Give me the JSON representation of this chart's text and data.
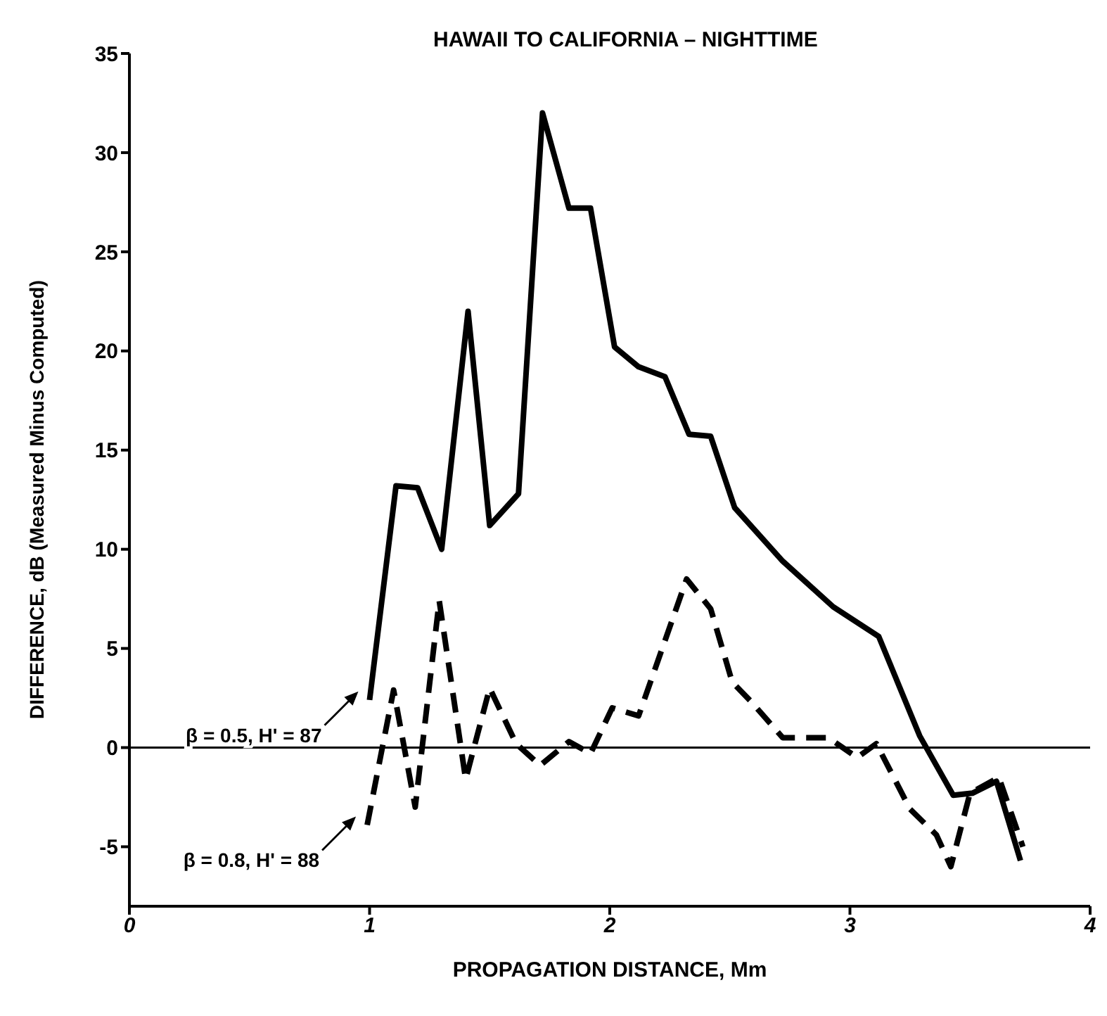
{
  "chart_data": {
    "type": "line",
    "title": "HAWAII TO CALIFORNIA – NIGHTTIME",
    "xlabel": "PROPAGATION DISTANCE, Mm",
    "ylabel": "DIFFERENCE, dB (Measured Minus Computed)",
    "xlim": [
      0,
      4
    ],
    "xticks": [
      0,
      1,
      2,
      3,
      4
    ],
    "ylim": [
      -8,
      35
    ],
    "yticks": [
      -5,
      0,
      5,
      10,
      15,
      20,
      25,
      30,
      35
    ],
    "grid": false,
    "legend": "left",
    "marker": "none",
    "ref_lines": [
      {
        "axis": "y",
        "value": 0,
        "color": "#000000",
        "line_style": "solid"
      }
    ],
    "series": [
      {
        "name": "β = 0.5, H' = 87",
        "color": "#000000",
        "line_style": "solid",
        "x": [
          1.0,
          1.11,
          1.2,
          1.3,
          1.41,
          1.5,
          1.62,
          1.72,
          1.83,
          1.92,
          2.02,
          2.12,
          2.23,
          2.33,
          2.42,
          2.52,
          2.72,
          2.93,
          3.12,
          3.29,
          3.43,
          3.51,
          3.61,
          3.71
        ],
        "values": [
          2.4,
          13.2,
          13.1,
          10,
          22,
          11.2,
          12.8,
          32,
          27.2,
          27.2,
          20.2,
          19.2,
          18.7,
          15.8,
          15.7,
          12.1,
          9.4,
          7.1,
          5.6,
          0.6,
          -2.4,
          -2.3,
          -1.7,
          -5.7
        ]
      },
      {
        "name": "β = 0.8, H' = 88",
        "color": "#000000",
        "line_style": "dashed",
        "x": [
          0.99,
          1.1,
          1.19,
          1.29,
          1.4,
          1.5,
          1.61,
          1.71,
          1.83,
          1.92,
          2.01,
          2.12,
          2.32,
          2.42,
          2.51,
          2.59,
          2.72,
          2.91,
          3.03,
          3.11,
          3.25,
          3.36,
          3.42,
          3.5,
          3.62,
          3.72
        ],
        "values": [
          -3.9,
          2.9,
          -3.0,
          7.4,
          -1.6,
          3.0,
          0.2,
          -0.9,
          0.3,
          -0.3,
          2.0,
          1.6,
          8.5,
          7.0,
          3.3,
          2.3,
          0.5,
          0.5,
          -0.5,
          0.2,
          -3.1,
          -4.4,
          -6.0,
          -2.3,
          -1.5,
          -5.0
        ]
      }
    ]
  }
}
